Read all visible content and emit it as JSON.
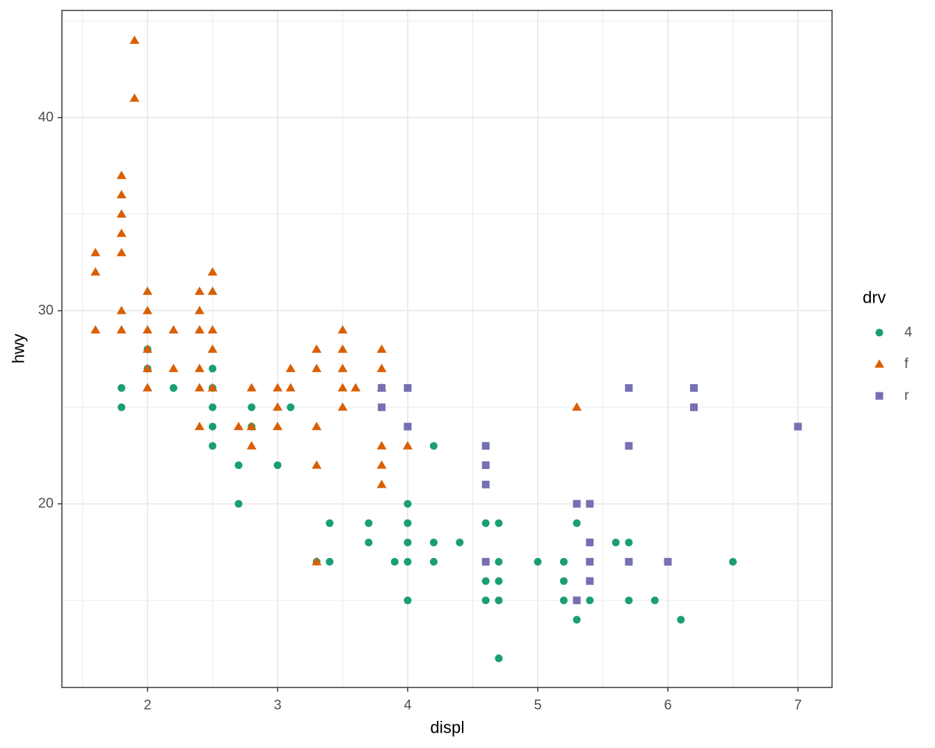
{
  "chart_data": {
    "type": "scatter",
    "x_label": "displ",
    "y_label": "hwy",
    "legend_title": "drv",
    "legend_position": "right",
    "grid": true,
    "xlim": [
      1.342,
      7.262
    ],
    "ylim": [
      10.49,
      45.55
    ],
    "xticks": [
      2,
      3,
      4,
      5,
      6,
      7
    ],
    "yticks": [
      20,
      30,
      40
    ],
    "xminor_grid": [
      1.5,
      2.5,
      3.5,
      4.5,
      5.5,
      6.5
    ],
    "yminor_grid": [
      15,
      25,
      35,
      45
    ],
    "series": [
      {
        "name": "4",
        "color": "#1b9e77",
        "shape": "circle",
        "x": [
          1.8,
          1.8,
          2,
          2,
          2.2,
          2.5,
          2.5,
          2.5,
          2.5,
          2.5,
          2.7,
          2.7,
          2.8,
          2.8,
          3,
          3.1,
          3.3,
          3.4,
          3.4,
          3.7,
          3.7,
          3.9,
          4,
          4,
          4,
          4,
          4,
          4.2,
          4.2,
          4.2,
          4.4,
          4.6,
          4.6,
          4.6,
          4.6,
          4.7,
          4.7,
          4.7,
          4.7,
          4.7,
          5,
          5.2,
          5.2,
          5.2,
          5.3,
          5.3,
          5.3,
          5.4,
          5.6,
          5.7,
          5.7,
          5.7,
          5.9,
          6.1,
          6.5
        ],
        "values": [
          26,
          25,
          28,
          27,
          26,
          27,
          26,
          25,
          24,
          23,
          22,
          20,
          25,
          24,
          22,
          25,
          17,
          19,
          17,
          19,
          18,
          17,
          20,
          19,
          18,
          17,
          15,
          23,
          18,
          17,
          18,
          19,
          17,
          16,
          15,
          19,
          17,
          16,
          15,
          12,
          17,
          17,
          16,
          15,
          19,
          15,
          14,
          15,
          18,
          18,
          17,
          15,
          15,
          14,
          17
        ]
      },
      {
        "name": "f",
        "color": "#d95f02",
        "shape": "triangle",
        "x": [
          1.9,
          1.9,
          1.8,
          1.8,
          1.8,
          1.8,
          1.8,
          1.6,
          1.6,
          1.8,
          1.8,
          1.6,
          2,
          2,
          2,
          2,
          2,
          2,
          2.2,
          2.2,
          2.4,
          2.4,
          2.4,
          2.4,
          2.4,
          2.4,
          2.5,
          2.5,
          2.5,
          2.5,
          2.5,
          2.7,
          2.8,
          2.8,
          2.8,
          3,
          3,
          3,
          3.1,
          3.1,
          3.3,
          3.3,
          3.3,
          3.3,
          3.3,
          3.5,
          3.5,
          3.5,
          3.5,
          3.5,
          3.6,
          3.8,
          3.8,
          3.8,
          3.8,
          3.8,
          3.8,
          4,
          5.3
        ],
        "values": [
          44,
          41,
          37,
          36,
          35,
          34,
          33,
          33,
          32,
          30,
          29,
          29,
          31,
          30,
          29,
          28,
          27,
          26,
          29,
          27,
          31,
          30,
          29,
          27,
          26,
          24,
          32,
          31,
          29,
          28,
          26,
          24,
          26,
          24,
          23,
          26,
          25,
          24,
          27,
          26,
          28,
          27,
          24,
          22,
          17,
          29,
          28,
          27,
          26,
          25,
          26,
          28,
          27,
          26,
          23,
          22,
          21,
          23,
          25
        ]
      },
      {
        "name": "r",
        "color": "#7570b3",
        "shape": "square",
        "x": [
          3.8,
          3.8,
          4,
          4,
          4.6,
          4.6,
          4.6,
          4.6,
          5.3,
          5.3,
          5.4,
          5.4,
          5.4,
          5.4,
          5.7,
          5.7,
          5.7,
          6,
          6.2,
          6.2,
          7
        ],
        "values": [
          26,
          25,
          26,
          24,
          23,
          22,
          21,
          17,
          20,
          15,
          20,
          18,
          17,
          16,
          26,
          23,
          17,
          17,
          26,
          25,
          24
        ]
      }
    ]
  }
}
